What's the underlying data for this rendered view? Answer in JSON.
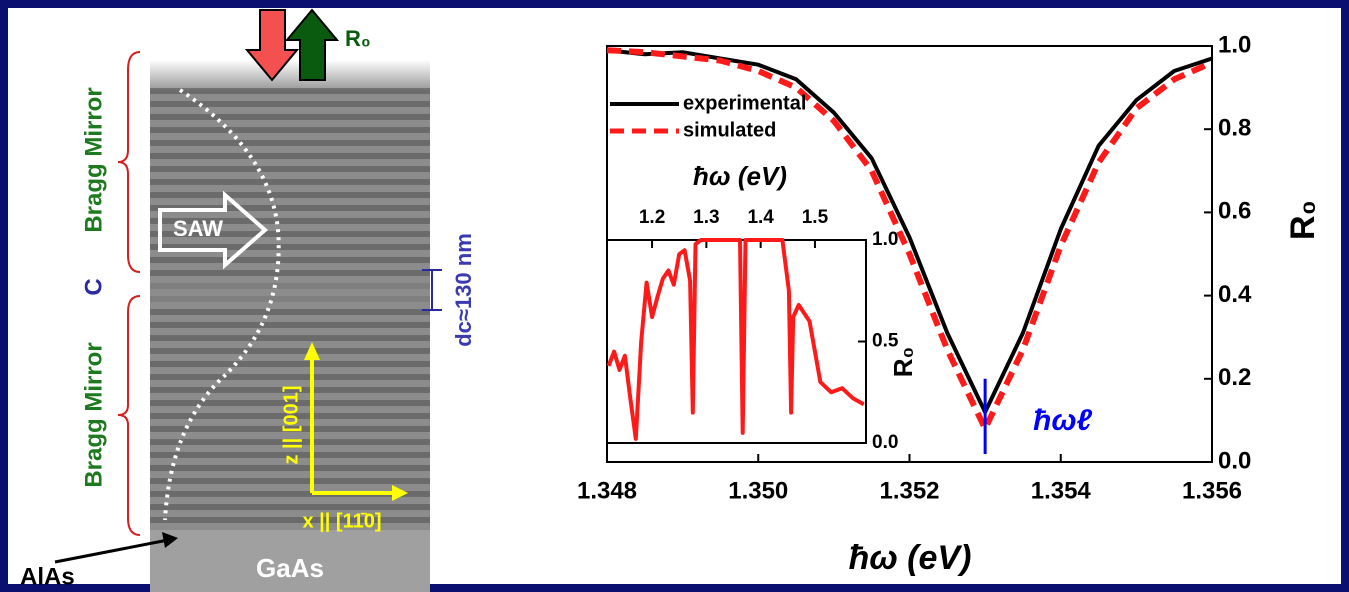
{
  "micrograph": {
    "top_mirror": "Bragg Mirror",
    "cavity": "C",
    "bottom_mirror": "Bragg Mirror",
    "saw": "SAW",
    "reflect": "R₀",
    "thickness": "dc≈130 nm",
    "z_axis": "z || [001]",
    "x_axis": "x || [11̄0]",
    "alas": "AlAs",
    "gaas": "GaAs"
  },
  "chart_data": [
    {
      "type": "line",
      "xlabel": "ħω (eV)",
      "ylabel": "R₀",
      "x": [
        1.348,
        1.3485,
        1.349,
        1.3495,
        1.35,
        1.3505,
        1.351,
        1.3515,
        1.352,
        1.3525,
        1.353,
        1.3535,
        1.354,
        1.3545,
        1.355,
        1.3555,
        1.356
      ],
      "series": [
        {
          "name": "experimental",
          "color": "#000000",
          "values": [
            0.99,
            0.98,
            0.985,
            0.97,
            0.955,
            0.92,
            0.84,
            0.73,
            0.54,
            0.31,
            0.12,
            0.31,
            0.56,
            0.76,
            0.87,
            0.94,
            0.97
          ]
        },
        {
          "name": "simulated",
          "color": "#ff1a1a",
          "dashed": true,
          "values": [
            0.99,
            0.985,
            0.975,
            0.965,
            0.94,
            0.9,
            0.82,
            0.7,
            0.5,
            0.27,
            0.08,
            0.27,
            0.52,
            0.72,
            0.85,
            0.92,
            0.96
          ]
        }
      ],
      "xlim": [
        1.348,
        1.356
      ],
      "ylim": [
        0,
        1
      ],
      "xticks": [
        1.348,
        {
          "value": 1.35,
          "label": "1.350"
        },
        1.352,
        1.354,
        1.356
      ],
      "yticks": [
        {
          "value": 0,
          "label": "0.0"
        },
        0.2,
        0.4,
        0.6,
        0.8,
        {
          "value": 1,
          "label": "1.0"
        }
      ],
      "annotation": {
        "text": "ħωℓ",
        "x": 1.353,
        "color": "#0000ff"
      },
      "legend": "upper left"
    },
    {
      "type": "line",
      "xlabel": "ħω (eV)",
      "ylabel": "R₀",
      "color": "#ff1a1a",
      "x": [
        1.12,
        1.13,
        1.14,
        1.15,
        1.16,
        1.17,
        1.18,
        1.19,
        1.2,
        1.21,
        1.22,
        1.23,
        1.24,
        1.25,
        1.26,
        1.27,
        1.275,
        1.28,
        1.29,
        1.3,
        1.35,
        1.362,
        1.367,
        1.372,
        1.4,
        1.44,
        1.452,
        1.456,
        1.46,
        1.47,
        1.49,
        1.51,
        1.53,
        1.55,
        1.57,
        1.59
      ],
      "values": [
        0.38,
        0.45,
        0.36,
        0.43,
        0.22,
        0.02,
        0.5,
        0.79,
        0.62,
        0.72,
        0.81,
        0.85,
        0.78,
        0.93,
        0.95,
        0.8,
        0.15,
        0.98,
        1,
        1,
        1,
        1,
        0.05,
        1,
        1,
        1,
        0.75,
        0.15,
        0.62,
        0.68,
        0.6,
        0.3,
        0.25,
        0.27,
        0.22,
        0.19
      ],
      "xlim": [
        1.117,
        1.594
      ],
      "ylim": [
        0,
        1
      ],
      "xticks": [
        1.2,
        1.3,
        1.4,
        1.5
      ],
      "yticks": [
        {
          "value": 0,
          "label": "0.0"
        },
        0.5,
        {
          "value": 1,
          "label": "1.0"
        }
      ]
    }
  ]
}
